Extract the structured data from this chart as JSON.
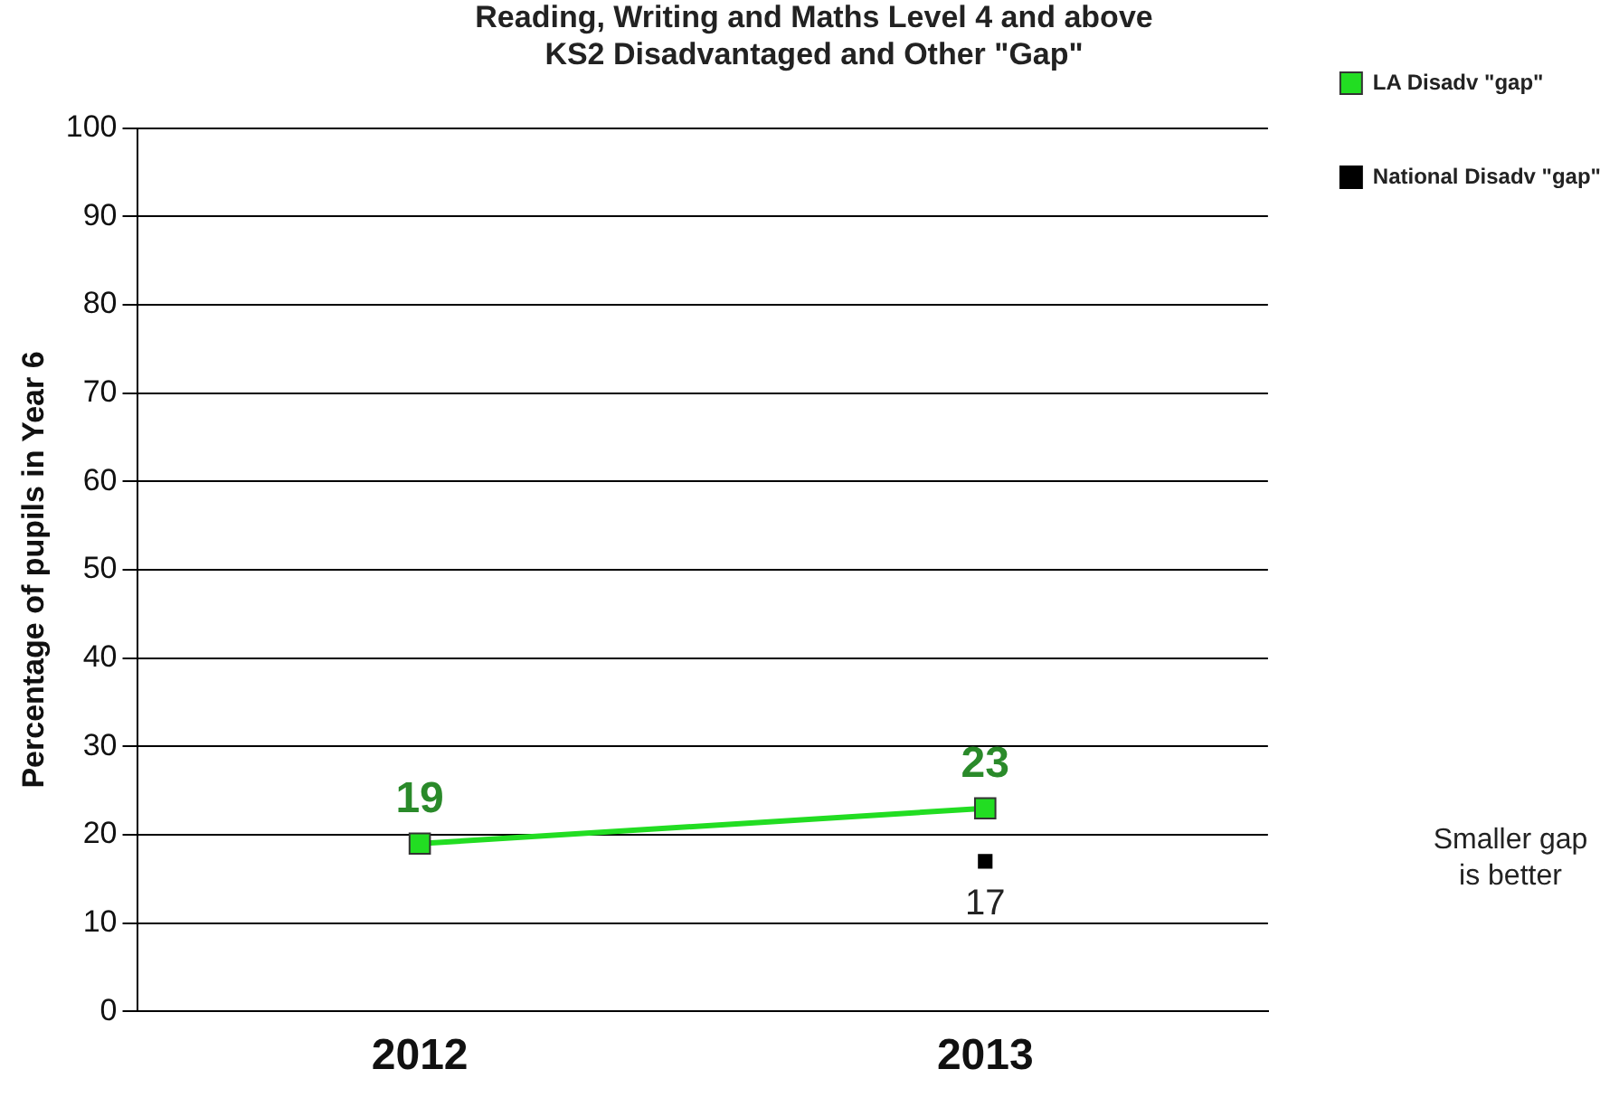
{
  "chart_data": {
    "type": "line",
    "title": "Reading, Writing and Maths Level 4 and above\nKS2 Disadvantaged and Other \"Gap\"",
    "ylabel": "Percentage of pupils in Year 6",
    "categories": [
      "2012",
      "2013"
    ],
    "series": [
      {
        "name": "LA Disadv \"gap\"",
        "color": "#22dd22",
        "values": [
          19,
          23
        ]
      },
      {
        "name": "National Disadv \"gap\"",
        "type": "scatter",
        "color": "#000000",
        "values": [
          null,
          17
        ]
      }
    ],
    "ylim": [
      0,
      100
    ],
    "yticks": [
      0,
      10,
      20,
      30,
      40,
      50,
      60,
      70,
      80,
      90,
      100
    ],
    "grid": "y",
    "legend": "right",
    "marker": "square",
    "data_labels": true,
    "annotations": [
      "Smaller gap is better"
    ]
  }
}
